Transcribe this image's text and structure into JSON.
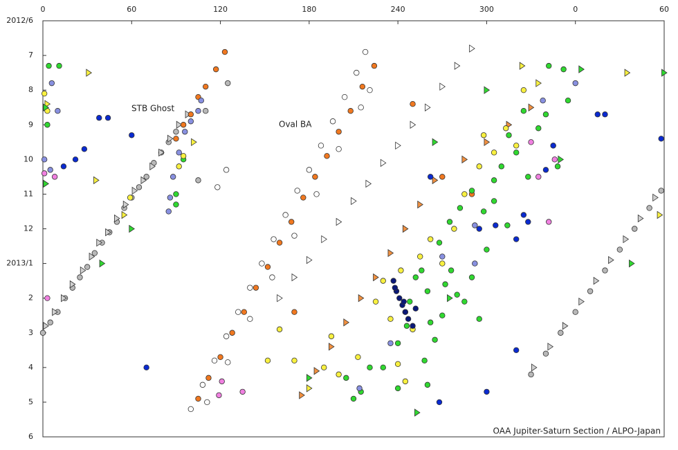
{
  "chart_data": {
    "type": "scatter",
    "annotations": [
      "STB Ghost",
      "Oval BA"
    ],
    "credit": "OAA Jupiter-Saturn Section / ALPO-Japan",
    "xlim": [
      0,
      420
    ],
    "ylim": [
      0,
      12
    ],
    "y_inverted": true,
    "xticks": [
      0,
      60,
      120,
      180,
      240,
      300,
      {
        "value": 360,
        "label": "0"
      },
      {
        "value": 420,
        "label": "60"
      }
    ],
    "yticks": [
      {
        "value": 0,
        "label": "2012/6"
      },
      {
        "value": 1,
        "label": "7"
      },
      {
        "value": 2,
        "label": "8"
      },
      {
        "value": 3,
        "label": "9"
      },
      {
        "value": 4,
        "label": "10"
      },
      {
        "value": 5,
        "label": "11"
      },
      {
        "value": 6,
        "label": "12"
      },
      {
        "value": 7,
        "label": "2013/1"
      },
      {
        "value": 8,
        "label": "2"
      },
      {
        "value": 9,
        "label": "3"
      },
      {
        "value": 10,
        "label": "4"
      },
      {
        "value": 11,
        "label": "5"
      },
      {
        "value": 12,
        "label": "6"
      }
    ],
    "series": [
      {
        "color": "#b8b8b8",
        "marker": "circle",
        "x": [
          0,
          5,
          10,
          15,
          20,
          25,
          30,
          35,
          40,
          45,
          50,
          55,
          60,
          65,
          70,
          75,
          80,
          85,
          90,
          110,
          125,
          105,
          330,
          340,
          350,
          360,
          370,
          380,
          390,
          400,
          410,
          418
        ],
        "values": [
          9,
          8.7,
          8.4,
          8.0,
          7.7,
          7.4,
          7.1,
          6.7,
          6.4,
          6.1,
          5.8,
          5.4,
          5.1,
          4.8,
          4.5,
          4.1,
          3.8,
          3.5,
          3.2,
          2.6,
          1.8,
          4.6,
          10.2,
          9.6,
          9.0,
          8.4,
          7.8,
          7.2,
          6.6,
          6.0,
          5.4,
          4.9
        ]
      },
      {
        "color": "#d0d0d0",
        "marker": "triangle",
        "x": [
          2,
          8,
          14,
          20,
          27,
          33,
          38,
          44,
          50,
          56,
          62,
          68,
          74,
          80,
          86,
          92,
          98,
          332,
          343,
          353,
          364,
          374,
          384,
          394,
          404,
          414
        ],
        "values": [
          8.8,
          8.4,
          8.0,
          7.6,
          7.2,
          6.8,
          6.4,
          6.1,
          5.7,
          5.3,
          4.9,
          4.6,
          4.2,
          3.8,
          3.4,
          3.0,
          2.7,
          10.0,
          9.4,
          8.8,
          8.1,
          7.5,
          6.9,
          6.3,
          5.7,
          5.1
        ]
      },
      {
        "color": "#ffffff",
        "marker": "circle",
        "x": [
          100,
          108,
          116,
          124,
          132,
          140,
          148,
          156,
          164,
          172,
          180,
          188,
          196,
          204,
          212,
          218,
          111,
          125,
          140,
          155,
          170,
          185,
          200,
          215,
          221,
          118,
          124
        ],
        "values": [
          11.2,
          10.5,
          9.8,
          9.1,
          8.4,
          7.7,
          7.0,
          6.3,
          5.6,
          4.9,
          4.3,
          3.6,
          2.9,
          2.2,
          1.5,
          0.9,
          11.0,
          9.85,
          8.6,
          7.4,
          6.2,
          5.0,
          3.7,
          2.5,
          2.0,
          4.8,
          4.3
        ]
      },
      {
        "color": "#ffffff",
        "marker": "triangle",
        "x": [
          160,
          170,
          180,
          190,
          200,
          210,
          220,
          230,
          240,
          250,
          260,
          270,
          280,
          290
        ],
        "values": [
          8.0,
          7.4,
          6.9,
          6.3,
          5.8,
          5.2,
          4.7,
          4.1,
          3.6,
          3.0,
          2.5,
          1.9,
          1.3,
          0.8
        ]
      },
      {
        "color": "#f07820",
        "marker": "circle",
        "x": [
          105,
          112,
          120,
          128,
          136,
          144,
          152,
          160,
          168,
          176,
          184,
          192,
          200,
          208,
          216,
          224,
          90,
          95,
          100,
          105,
          110,
          117,
          123,
          250,
          270,
          290,
          170
        ],
        "values": [
          10.9,
          10.3,
          9.7,
          9.0,
          8.4,
          7.7,
          7.1,
          6.4,
          5.8,
          5.1,
          4.5,
          3.9,
          3.2,
          2.6,
          1.9,
          1.3,
          3.4,
          3.0,
          2.7,
          2.2,
          1.9,
          1.4,
          0.9,
          2.4,
          4.5,
          5.0,
          8.4
        ]
      },
      {
        "color": "#f09040",
        "marker": "triangle",
        "x": [
          175,
          185,
          195,
          205,
          215,
          225,
          235,
          245,
          255,
          265,
          285,
          300,
          315,
          330
        ],
        "values": [
          10.8,
          10.1,
          9.4,
          8.7,
          8.0,
          7.4,
          6.7,
          6.0,
          5.3,
          4.6,
          4.0,
          3.5,
          3.0,
          2.5
        ]
      },
      {
        "color": "#30d830",
        "marker": "circle",
        "x": [
          4,
          11,
          3,
          210,
          205,
          215,
          230,
          240,
          245,
          248,
          252,
          256,
          260,
          262,
          265,
          270,
          272,
          276,
          280,
          285,
          290,
          295,
          258,
          268,
          275,
          282,
          290,
          298,
          305,
          310,
          315,
          320,
          325,
          335,
          340,
          352,
          355,
          342,
          348,
          345,
          328,
          305,
          260,
          240,
          221,
          246,
          300,
          314,
          90,
          90,
          95
        ],
        "values": [
          1.3,
          1.3,
          3.0,
          10.9,
          10.3,
          10.7,
          10.0,
          9.3,
          8.4,
          8.1,
          7.4,
          7.2,
          7.8,
          8.7,
          9.2,
          8.5,
          7.6,
          7.2,
          7.9,
          8.1,
          7.4,
          8.6,
          9.8,
          6.4,
          5.8,
          5.4,
          4.9,
          5.5,
          5.2,
          4.2,
          3.3,
          3.8,
          2.6,
          3.1,
          2.7,
          1.4,
          2.3,
          1.3,
          4.2,
          3.6,
          4.5,
          4.6,
          10.5,
          10.6,
          10.0,
          8.8,
          6.6,
          5.9,
          5.0,
          5.3,
          4.0
        ]
      },
      {
        "color": "#f8f040",
        "marker": "circle",
        "x": [
          1,
          3,
          92,
          95,
          59,
          170,
          160,
          152,
          200,
          213,
          225,
          230,
          235,
          242,
          250,
          255,
          262,
          270,
          278,
          285,
          295,
          298,
          305,
          313,
          325,
          320,
          240,
          245,
          190,
          195
        ],
        "values": [
          2.1,
          2.6,
          4.2,
          3.9,
          5.1,
          9.8,
          8.9,
          9.8,
          10.2,
          9.7,
          8.1,
          7.5,
          8.6,
          7.2,
          8.9,
          6.8,
          6.3,
          7.0,
          6.0,
          5.0,
          4.2,
          3.3,
          3.8,
          3.1,
          2.0,
          3.6,
          9.9,
          10.4,
          10.0,
          9.1
        ]
      },
      {
        "color": "#8890e0",
        "marker": "circle",
        "x": [
          85,
          86,
          88,
          92,
          96,
          100,
          105,
          107,
          6,
          10,
          5,
          1,
          270,
          292,
          338,
          360,
          292,
          235,
          214
        ],
        "values": [
          5.5,
          5.1,
          4.5,
          3.8,
          3.2,
          2.9,
          2.6,
          2.3,
          1.8,
          2.6,
          4.3,
          4.0,
          6.8,
          7.0,
          2.3,
          1.8,
          5.9,
          9.3,
          10.6
        ]
      },
      {
        "color": "#0a2ad0",
        "marker": "circle",
        "x": [
          38,
          44,
          60,
          28,
          22,
          14,
          70,
          268,
          262,
          295,
          306,
          325,
          328,
          340,
          345,
          375,
          380,
          418,
          320,
          300,
          320
        ],
        "values": [
          2.8,
          2.8,
          3.3,
          3.7,
          4.0,
          4.2,
          10.0,
          11.0,
          4.5,
          6.0,
          5.9,
          5.6,
          5.8,
          4.3,
          3.6,
          2.7,
          2.7,
          3.4,
          6.3,
          10.7,
          9.5
        ]
      },
      {
        "color": "#0a1878",
        "marker": "circle",
        "x": [
          237,
          239,
          241,
          243,
          245,
          247,
          250,
          252,
          238,
          244
        ],
        "values": [
          7.5,
          7.8,
          8.0,
          8.2,
          8.4,
          8.6,
          8.8,
          8.3,
          7.7,
          8.1
        ]
      },
      {
        "color": "#f080e0",
        "marker": "circle",
        "x": [
          1,
          3,
          8,
          119,
          121,
          135,
          335,
          346,
          342,
          330
        ],
        "values": [
          4.4,
          8.0,
          4.5,
          10.8,
          10.4,
          10.7,
          4.5,
          4.0,
          5.8,
          3.5
        ]
      },
      {
        "color": "#f8f040",
        "marker": "triangle",
        "x": [
          3,
          31,
          36,
          55,
          102,
          324,
          335,
          395,
          417,
          180
        ],
        "values": [
          2.4,
          1.5,
          4.6,
          5.6,
          3.5,
          1.3,
          1.8,
          1.5,
          5.6,
          10.6
        ]
      },
      {
        "color": "#30d830",
        "marker": "triangle",
        "x": [
          2,
          2,
          40,
          60,
          253,
          275,
          265,
          350,
          364,
          398,
          420,
          180,
          300
        ],
        "values": [
          4.7,
          2.5,
          7.0,
          6.0,
          11.3,
          8.0,
          3.5,
          4.0,
          1.4,
          7.0,
          1.5,
          10.3,
          2.0
        ]
      }
    ]
  }
}
